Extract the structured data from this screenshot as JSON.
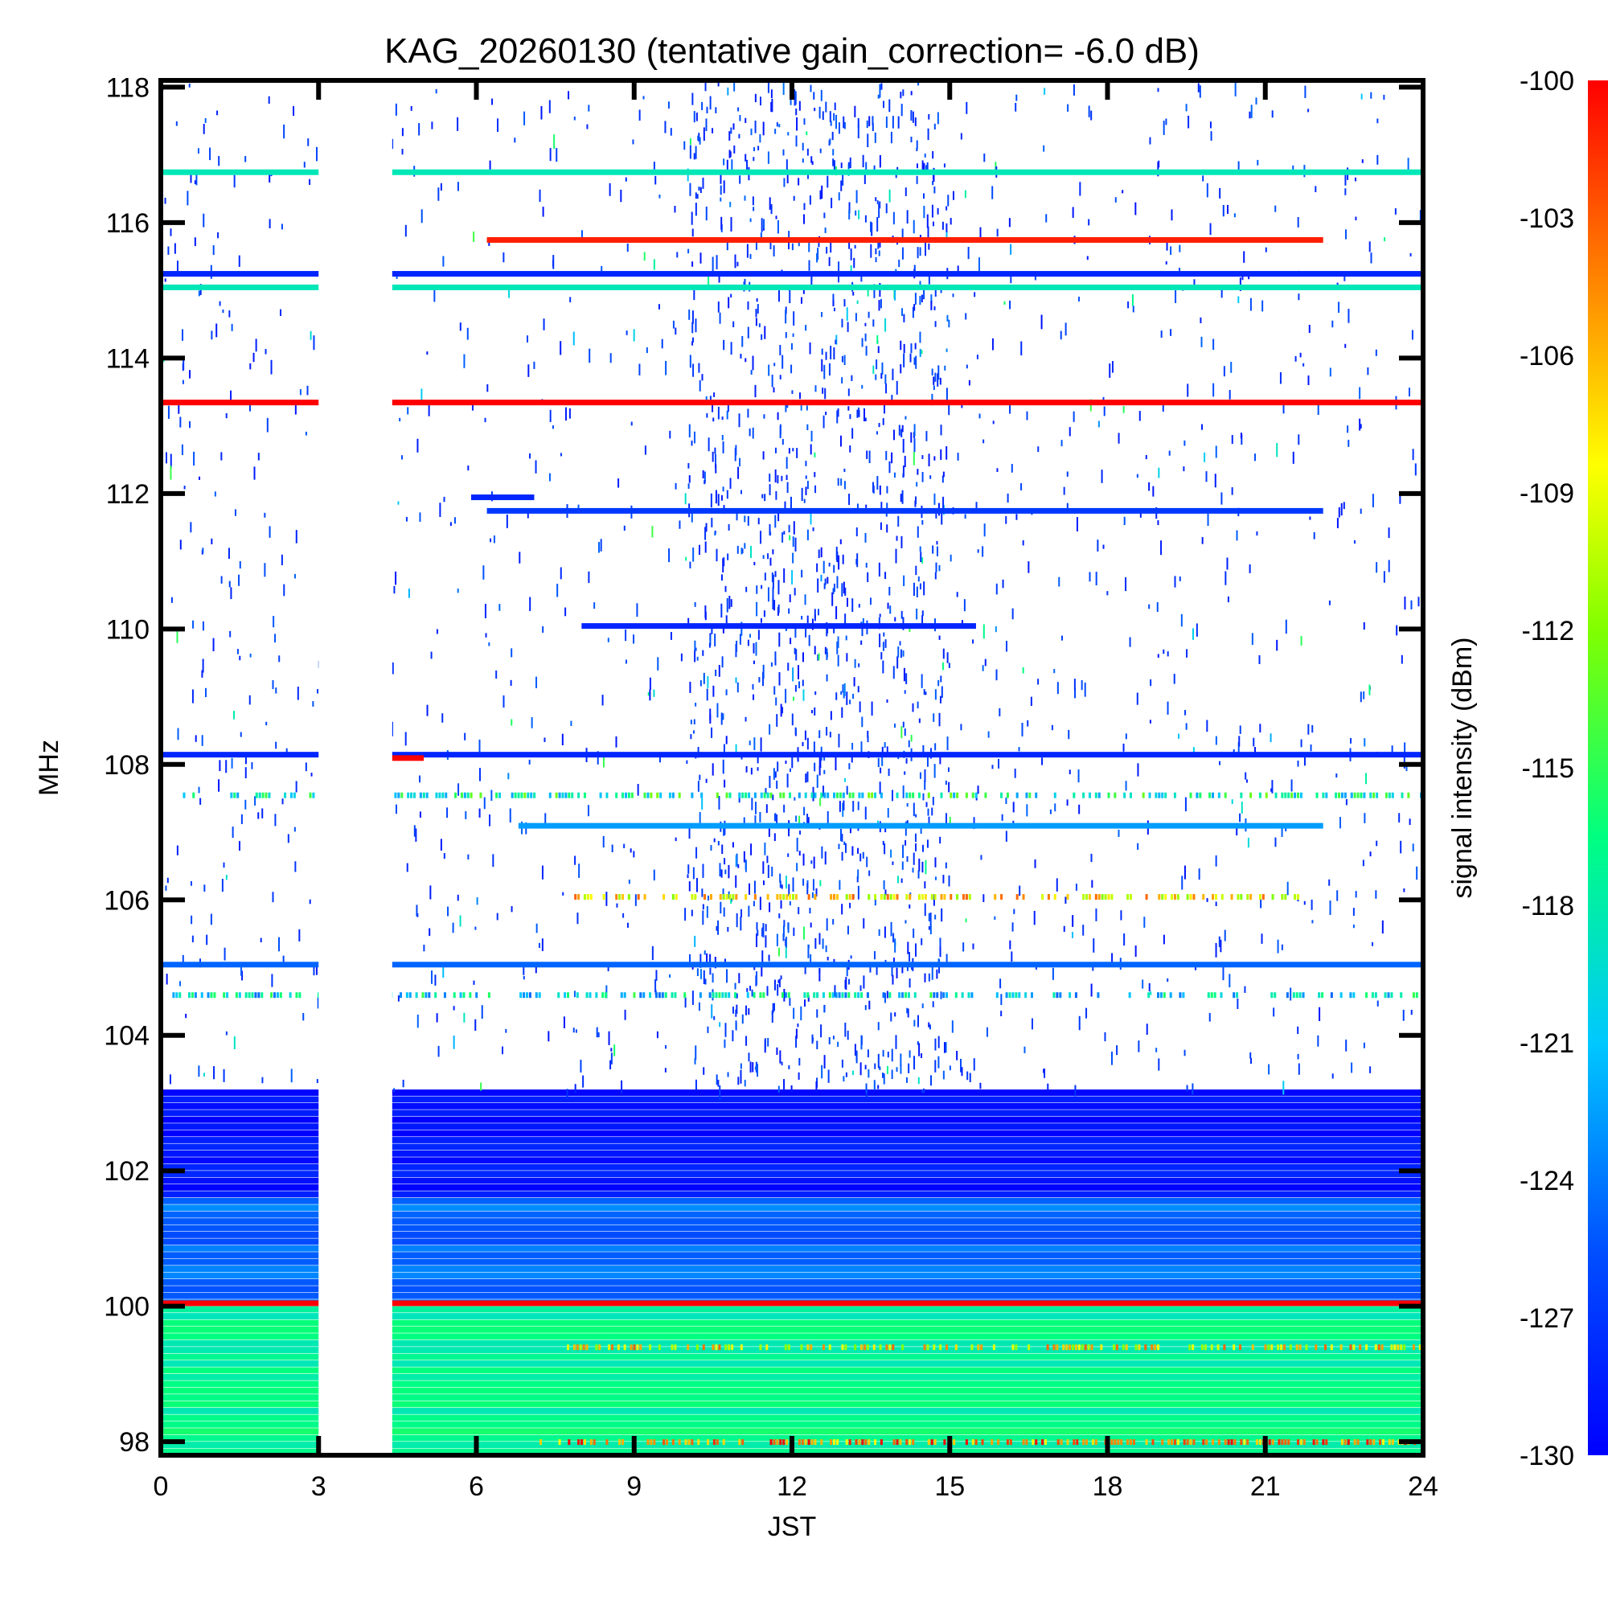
{
  "chart_data": {
    "type": "heatmap",
    "title": "KAG_20260130 (tentative gain_correction= -6.0 dB)",
    "xlabel": "JST",
    "ylabel": "MHz",
    "xlim": [
      0,
      24
    ],
    "ylim": [
      97.8,
      118.1
    ],
    "x_ticks": [
      "0",
      "3",
      "6",
      "9",
      "12",
      "15",
      "18",
      "21",
      "24"
    ],
    "y_ticks": [
      "98",
      "100",
      "102",
      "104",
      "106",
      "108",
      "110",
      "112",
      "114",
      "116",
      "118"
    ],
    "colorbar": {
      "label": "signal intensity (dBm)",
      "min": -130,
      "max": -100,
      "ticks": [
        "-100",
        "-103",
        "-106",
        "-109",
        "-112",
        "-115",
        "-118",
        "-121",
        "-124",
        "-127",
        "-130"
      ],
      "colormap": [
        "#0000ff",
        "#0050ff",
        "#00c8ff",
        "#00ff80",
        "#80ff00",
        "#ffff00",
        "#ff8000",
        "#ff0000"
      ]
    },
    "data_gap_hours": [
      3.0,
      4.4
    ],
    "continuous_bands": [
      {
        "freq_mhz": 116.75,
        "x_range": [
          0,
          24
        ],
        "level_dbm": -119
      },
      {
        "freq_mhz": 115.75,
        "x_range": [
          6.2,
          22.1
        ],
        "level_dbm": -101
      },
      {
        "freq_mhz": 115.25,
        "x_range": [
          0,
          24
        ],
        "level_dbm": -128
      },
      {
        "freq_mhz": 115.05,
        "x_range": [
          0,
          24
        ],
        "level_dbm": -119
      },
      {
        "freq_mhz": 113.35,
        "x_range": [
          0,
          24
        ],
        "level_dbm": -100
      },
      {
        "freq_mhz": 111.95,
        "x_range": [
          5.9,
          7.1
        ],
        "level_dbm": -128
      },
      {
        "freq_mhz": 111.75,
        "x_range": [
          6.2,
          22.1
        ],
        "level_dbm": -127
      },
      {
        "freq_mhz": 110.05,
        "x_range": [
          8.0,
          15.5
        ],
        "level_dbm": -128
      },
      {
        "freq_mhz": 108.15,
        "x_range": [
          0,
          24
        ],
        "level_dbm": -128
      },
      {
        "freq_mhz": 108.1,
        "x_range": [
          4.0,
          5.0
        ],
        "level_dbm": -100
      },
      {
        "freq_mhz": 107.1,
        "x_range": [
          6.8,
          22.1
        ],
        "level_dbm": -123
      },
      {
        "freq_mhz": 105.05,
        "x_range": [
          0,
          24
        ],
        "level_dbm": -125
      },
      {
        "freq_mhz": 100.05,
        "x_range": [
          0,
          24
        ],
        "level_dbm": -100
      }
    ],
    "intermittent_bands": [
      {
        "freq_mhz": 107.55,
        "x_range": [
          0.3,
          24
        ],
        "level_dbm": -118
      },
      {
        "freq_mhz": 106.05,
        "x_range": [
          7.8,
          21.6
        ],
        "level_dbm": -108
      },
      {
        "freq_mhz": 104.6,
        "x_range": [
          0.1,
          24
        ],
        "level_dbm": -120
      },
      {
        "freq_mhz": 99.4,
        "x_range": [
          7.6,
          24
        ],
        "level_dbm": -108
      },
      {
        "freq_mhz": 98.0,
        "x_range": [
          7.2,
          24
        ],
        "level_dbm": -104
      }
    ],
    "background_levels": [
      {
        "freq_range_mhz": [
          97.8,
          100.0
        ],
        "level_dbm": -118
      },
      {
        "freq_range_mhz": [
          100.0,
          101.6
        ],
        "level_dbm": -125
      },
      {
        "freq_range_mhz": [
          101.6,
          103.2
        ],
        "level_dbm": -129
      },
      {
        "freq_range_mhz": [
          103.2,
          118.1
        ],
        "level_dbm": null
      }
    ],
    "activity_window_hours": [
      10.0,
      15.0
    ],
    "grid": false,
    "colorbar_position": "right"
  }
}
